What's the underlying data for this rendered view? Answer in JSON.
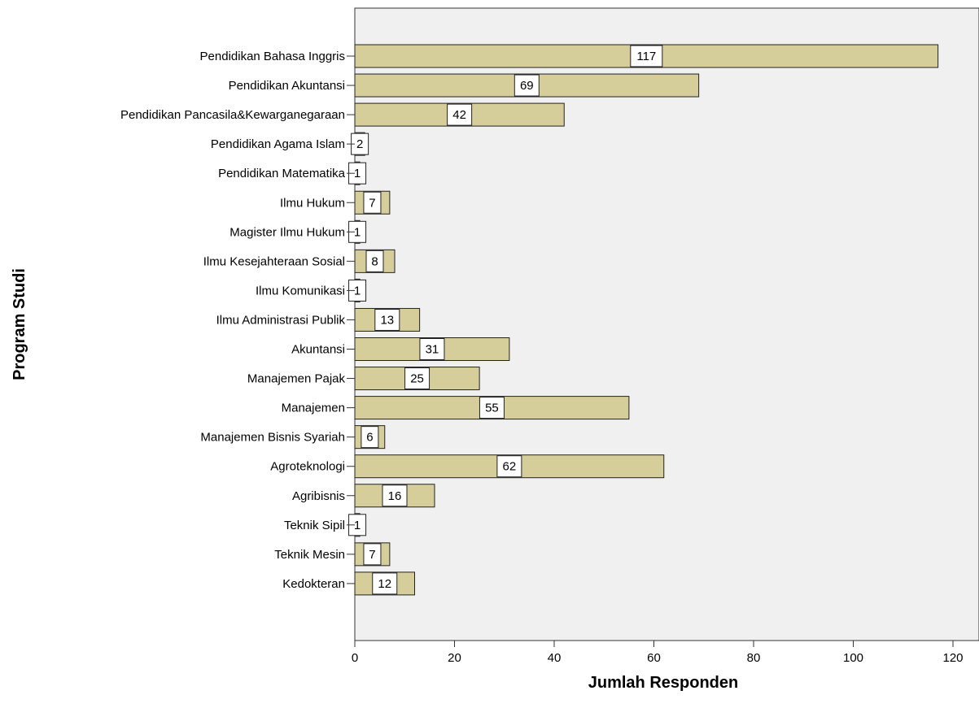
{
  "chart_data": {
    "type": "bar",
    "orientation": "horizontal",
    "categories": [
      "Pendidikan Bahasa Inggris",
      "Pendidikan Akuntansi",
      "Pendidikan Pancasila&Kewarganegaraan",
      "Pendidikan Agama Islam",
      "Pendidikan Matematika",
      "Ilmu Hukum",
      "Magister Ilmu Hukum",
      "Ilmu Kesejahteraan Sosial",
      "Ilmu Komunikasi",
      "Ilmu Administrasi Publik",
      "Akuntansi",
      "Manajemen Pajak",
      "Manajemen",
      "Manajemen Bisnis Syariah",
      "Agroteknologi",
      "Agribisnis",
      "Teknik Sipil",
      "Teknik Mesin",
      "Kedokteran"
    ],
    "values": [
      117,
      69,
      42,
      2,
      1,
      7,
      1,
      8,
      1,
      13,
      31,
      25,
      55,
      6,
      62,
      16,
      1,
      7,
      12
    ],
    "xlabel": "Jumlah Responden",
    "ylabel": "Program Studi",
    "xlim": [
      0,
      125
    ],
    "xticks": [
      0,
      20,
      40,
      60,
      80,
      100,
      120
    ],
    "grid": false,
    "data_labels": true,
    "colors": {
      "bar_fill": "#d5ce9a",
      "bar_stroke": "#222222",
      "plot_background": "#f0f0f0",
      "label_box_fill": "#ffffff",
      "axis": "#333333"
    }
  }
}
